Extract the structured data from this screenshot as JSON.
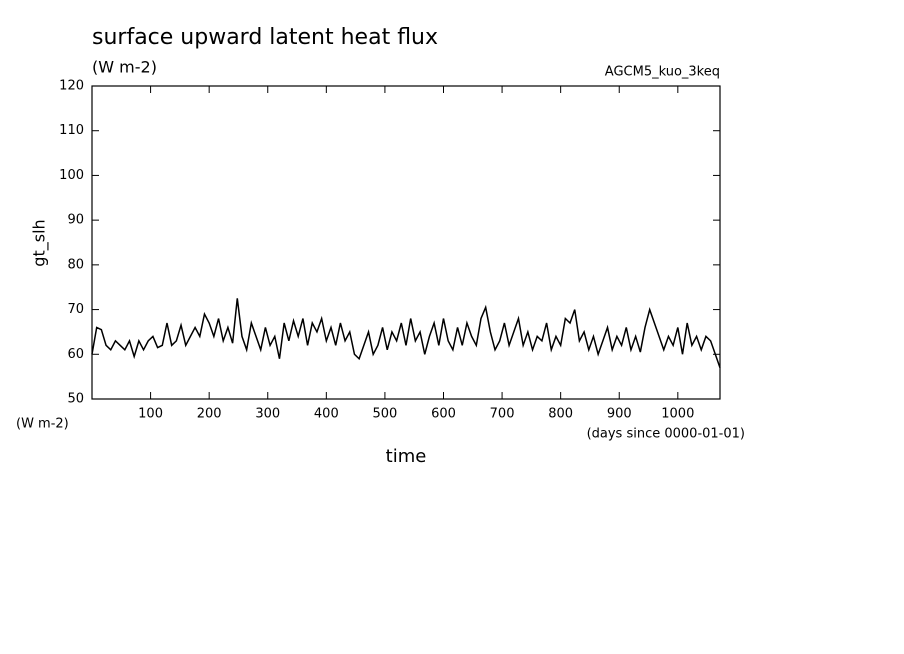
{
  "chart_data": {
    "type": "line",
    "title": "surface upward latent heat flux",
    "subtitle": "(W m-2)",
    "annotation": "AGCM5_kuo_3keq",
    "y_label": "gt_slh",
    "y_units": "(W m-2)",
    "x_label": "time",
    "x_units": "(days since 0000-01-01)",
    "xlim": [
      0,
      1072
    ],
    "ylim": [
      50,
      120
    ],
    "xticks": [
      100,
      200,
      300,
      400,
      500,
      600,
      700,
      800,
      900,
      1000
    ],
    "yticks": [
      50,
      60,
      70,
      80,
      90,
      100,
      110,
      120
    ],
    "series": [
      {
        "color": "#000000",
        "x": [
          0,
          8,
          16,
          24,
          32,
          40,
          48,
          56,
          64,
          72,
          80,
          88,
          96,
          104,
          112,
          120,
          128,
          136,
          144,
          152,
          160,
          168,
          176,
          184,
          192,
          200,
          208,
          216,
          224,
          232,
          240,
          248,
          256,
          264,
          272,
          280,
          288,
          296,
          304,
          312,
          320,
          328,
          336,
          344,
          352,
          360,
          368,
          376,
          384,
          392,
          400,
          408,
          416,
          424,
          432,
          440,
          448,
          456,
          464,
          472,
          480,
          488,
          496,
          504,
          512,
          520,
          528,
          536,
          544,
          552,
          560,
          568,
          576,
          584,
          592,
          600,
          608,
          616,
          624,
          632,
          640,
          648,
          656,
          664,
          672,
          680,
          688,
          696,
          704,
          712,
          720,
          728,
          736,
          744,
          752,
          760,
          768,
          776,
          784,
          792,
          800,
          808,
          816,
          824,
          832,
          840,
          848,
          856,
          864,
          872,
          880,
          888,
          896,
          904,
          912,
          920,
          928,
          936,
          944,
          952,
          960,
          968,
          976,
          984,
          992,
          1000,
          1008,
          1016,
          1024,
          1032,
          1040,
          1048,
          1056,
          1064,
          1072
        ],
        "values": [
          60,
          66,
          65.5,
          62,
          61,
          63,
          62,
          61,
          63,
          59.5,
          63,
          61,
          63,
          64,
          61.5,
          62,
          67,
          62,
          63,
          66.5,
          62,
          64,
          66,
          64,
          69,
          67,
          64,
          68,
          63,
          66,
          62.5,
          72.5,
          64,
          61,
          67,
          64,
          61,
          66,
          62,
          64,
          59,
          67,
          63,
          67.5,
          64,
          68,
          62,
          67,
          65,
          68,
          63,
          66,
          62,
          67,
          63,
          65,
          60,
          59,
          62,
          65,
          60,
          62,
          66,
          61,
          65,
          63,
          67,
          62,
          68,
          63,
          65,
          60,
          64,
          67,
          62,
          68,
          63,
          61,
          66,
          62,
          67,
          64,
          62,
          68,
          70.5,
          65,
          61,
          63,
          67,
          62,
          65,
          68,
          62,
          65,
          61,
          64,
          63,
          67,
          61,
          64,
          62,
          68,
          67,
          70,
          63,
          65,
          61,
          64,
          60,
          63,
          66,
          61,
          64,
          62,
          66,
          61,
          64,
          60.5,
          66,
          70,
          67,
          64,
          61,
          64,
          62,
          66,
          60,
          67,
          62,
          64,
          61,
          64,
          63,
          60,
          57
        ]
      }
    ]
  }
}
